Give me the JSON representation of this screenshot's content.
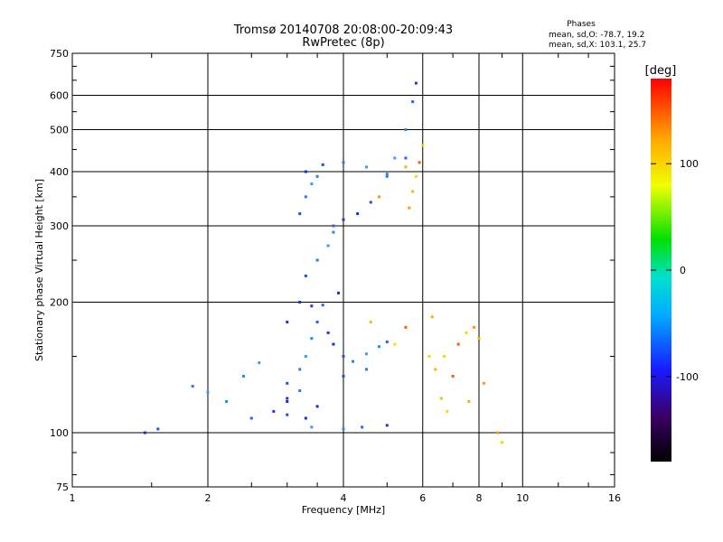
{
  "header": {
    "title_line1": "Tromsø 20140708 20:08:00-20:09:43",
    "title_line2": "RwPretec (8p)"
  },
  "phases": {
    "heading": "Phases",
    "o_stats": "mean, sd,O: -78.7, 19.2",
    "x_stats": "mean, sd,X: 103.1, 25.7"
  },
  "colorbar": {
    "unit": "[deg]",
    "range": [
      -180,
      180
    ],
    "ticks": [
      {
        "label": "100",
        "value": 100
      },
      {
        "label": "0",
        "value": 0
      },
      {
        "label": "-100",
        "value": -100
      }
    ]
  },
  "chart_data": {
    "type": "scatter",
    "title": "Tromsø 20140708 20:08:00-20:09:43",
    "subtitle": "RwPretec (8p)",
    "xlabel": "Frequency [MHz]",
    "ylabel": "Stationary phase Virtual Height [km]",
    "x_scale": "log",
    "y_scale": "log",
    "xlim": [
      1,
      16
    ],
    "ylim": [
      75,
      750
    ],
    "x_ticks": [
      1,
      2,
      4,
      6,
      8,
      10,
      16
    ],
    "x_tick_labels": [
      "1",
      "2",
      "4",
      "6",
      "8",
      "10",
      "16"
    ],
    "y_ticks": [
      75,
      100,
      200,
      300,
      400,
      500,
      600,
      750
    ],
    "y_tick_labels": [
      "75",
      "100",
      "200",
      "300",
      "400",
      "500",
      "600",
      "750"
    ],
    "grid": true,
    "color_encoding": "phase (deg)",
    "series": [
      {
        "points": [
          [
            1.45,
            100
          ],
          [
            1.55,
            102
          ],
          [
            1.85,
            128
          ],
          [
            2.0,
            124
          ],
          [
            2.2,
            118
          ],
          [
            2.5,
            108
          ],
          [
            2.8,
            112
          ],
          [
            3.0,
            118
          ],
          [
            3.0,
            130
          ],
          [
            3.2,
            140
          ],
          [
            3.3,
            150
          ],
          [
            3.4,
            165
          ],
          [
            3.5,
            180
          ],
          [
            3.7,
            170
          ],
          [
            3.8,
            160
          ],
          [
            4.0,
            150
          ],
          [
            4.2,
            146
          ],
          [
            4.5,
            152
          ],
          [
            4.8,
            158
          ],
          [
            5.0,
            162
          ],
          [
            3.0,
            180
          ],
          [
            3.2,
            200
          ],
          [
            3.3,
            230
          ],
          [
            3.5,
            250
          ],
          [
            3.7,
            270
          ],
          [
            3.8,
            290
          ],
          [
            3.6,
            197
          ],
          [
            3.4,
            196
          ],
          [
            3.9,
            210
          ],
          [
            3.2,
            320
          ],
          [
            3.3,
            350
          ],
          [
            3.4,
            375
          ],
          [
            3.5,
            390
          ],
          [
            3.8,
            300
          ],
          [
            4.0,
            310
          ],
          [
            4.3,
            320
          ],
          [
            4.6,
            340
          ],
          [
            5.0,
            390
          ],
          [
            5.2,
            430
          ],
          [
            5.5,
            500
          ],
          [
            5.7,
            580
          ],
          [
            5.8,
            640
          ],
          [
            3.3,
            400
          ],
          [
            3.6,
            415
          ],
          [
            4.0,
            420
          ],
          [
            4.5,
            410
          ],
          [
            5.0,
            395
          ],
          [
            5.5,
            430
          ],
          [
            3.0,
            120
          ],
          [
            3.5,
            115
          ],
          [
            4.0,
            135
          ],
          [
            4.5,
            140
          ],
          [
            3.4,
            103
          ],
          [
            4.0,
            102
          ],
          [
            4.4,
            103
          ],
          [
            5.0,
            104
          ],
          [
            3.3,
            108
          ],
          [
            3.0,
            110
          ],
          [
            3.2,
            125
          ],
          [
            2.6,
            145
          ],
          [
            2.4,
            135
          ]
        ],
        "color_group": "O-mode (blue)"
      },
      {
        "points": [
          [
            5.6,
            330
          ],
          [
            5.7,
            360
          ],
          [
            5.8,
            390
          ],
          [
            5.9,
            420
          ],
          [
            6.0,
            460
          ],
          [
            5.5,
            410
          ],
          [
            4.8,
            350
          ],
          [
            6.4,
            140
          ],
          [
            6.7,
            150
          ],
          [
            7.0,
            135
          ],
          [
            7.5,
            170
          ],
          [
            8.0,
            165
          ],
          [
            8.2,
            130
          ],
          [
            6.6,
            120
          ],
          [
            6.8,
            112
          ],
          [
            7.2,
            160
          ],
          [
            6.2,
            150
          ],
          [
            7.6,
            118
          ],
          [
            8.8,
            100
          ],
          [
            4.6,
            180
          ],
          [
            5.2,
            160
          ],
          [
            5.5,
            175
          ],
          [
            9.0,
            95
          ],
          [
            6.3,
            185
          ],
          [
            7.8,
            175
          ]
        ],
        "color_group": "X-mode (orange/yellow)"
      }
    ]
  }
}
